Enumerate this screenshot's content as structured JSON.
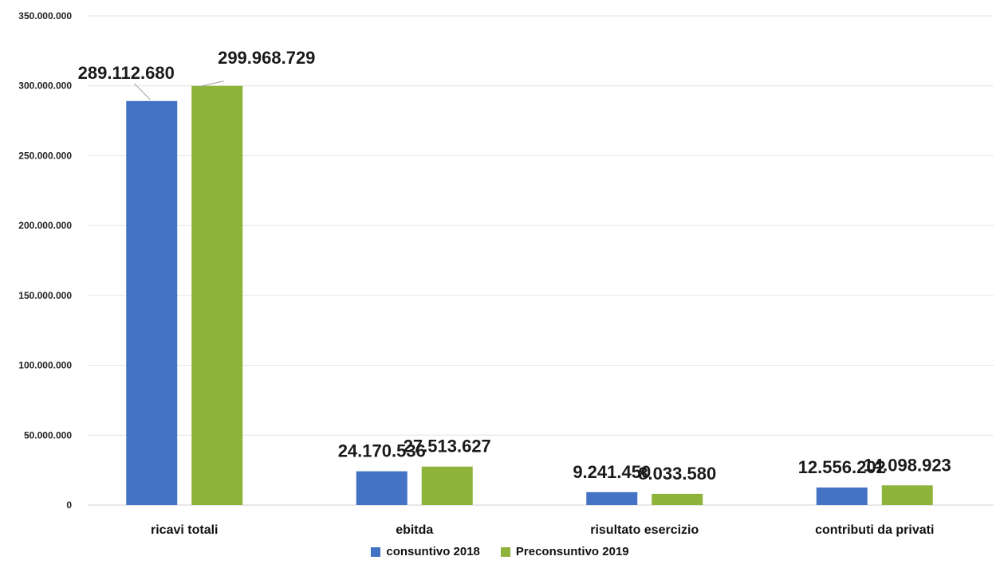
{
  "chart_data": {
    "type": "bar",
    "categories": [
      "ricavi totali",
      "ebitda",
      "risultato esercizio",
      "contributi da privati"
    ],
    "series": [
      {
        "name": "consuntivo 2018",
        "color": "#4472C4",
        "values": [
          289112680,
          24170536,
          9241450,
          12556202
        ],
        "labels": [
          "289.112.680",
          "24.170.536",
          "9.241.450",
          "12.556.202"
        ]
      },
      {
        "name": "Preconsuntivo 2019",
        "color": "#8DB33A",
        "values": [
          299968729,
          27513627,
          8033580,
          14098923
        ],
        "labels": [
          "299.968.729",
          "27.513.627",
          "8.033.580",
          "14.098.923"
        ]
      }
    ],
    "yticks": [
      0,
      50000000,
      100000000,
      150000000,
      200000000,
      250000000,
      300000000,
      350000000
    ],
    "ytick_labels": [
      "0",
      "50.000.000",
      "100.000.000",
      "150.000.000",
      "200.000.000",
      "250.000.000",
      "300.000.000",
      "350.000.000"
    ],
    "ylim": [
      0,
      350000000
    ],
    "grid": true,
    "legend_position": "bottom"
  }
}
